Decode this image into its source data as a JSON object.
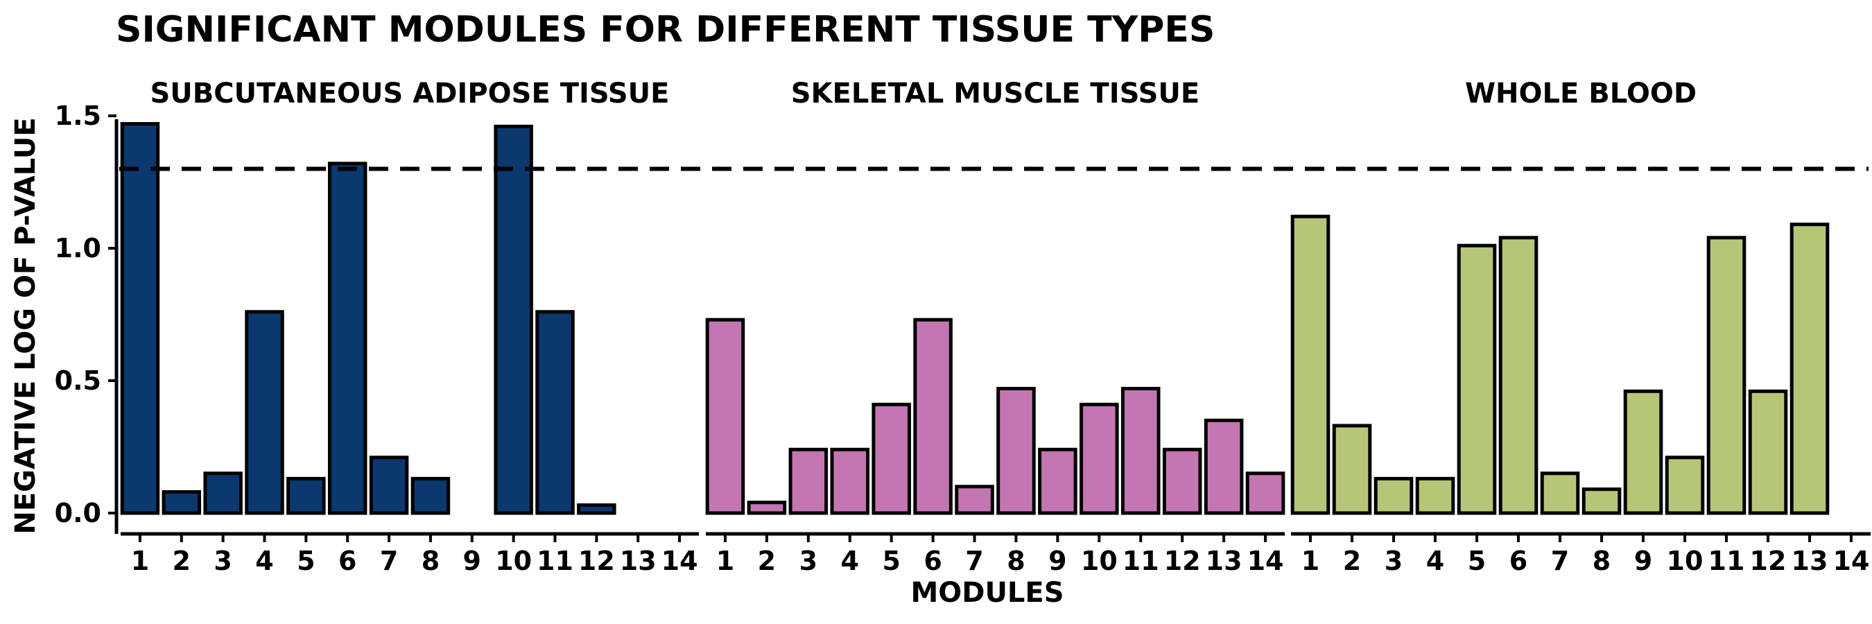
{
  "chart_data": {
    "type": "bar",
    "title": "SIGNIFICANT MODULES FOR DIFFERENT TISSUE TYPES",
    "xlabel": "MODULES",
    "ylabel": "NEGATIVE LOG OF P-VALUE",
    "ylim": [
      0,
      1.55
    ],
    "yticks": [
      "0.0",
      "0.5",
      "1.0",
      "1.5"
    ],
    "ytick_values": [
      0,
      0.5,
      1.0,
      1.5
    ],
    "categories": [
      "1",
      "2",
      "3",
      "4",
      "5",
      "6",
      "7",
      "8",
      "9",
      "10",
      "11",
      "12",
      "13",
      "14"
    ],
    "threshold": 1.3,
    "grid": false,
    "panels": [
      {
        "name": "SUBCUTANEOUS ADIPOSE TISSUE",
        "color": "#0a386f",
        "values": [
          1.47,
          0.08,
          0.15,
          0.76,
          0.13,
          1.32,
          0.21,
          0.13,
          0.0,
          1.46,
          0.76,
          0.03,
          0.0,
          0.0
        ]
      },
      {
        "name": "SKELETAL MUSCLE TISSUE",
        "color": "#c476b3",
        "values": [
          0.73,
          0.04,
          0.24,
          0.24,
          0.41,
          0.73,
          0.1,
          0.47,
          0.24,
          0.41,
          0.47,
          0.24,
          0.35,
          0.15
        ]
      },
      {
        "name": "WHOLE BLOOD",
        "color": "#b5c677",
        "values": [
          1.12,
          0.33,
          0.13,
          0.13,
          1.01,
          1.04,
          0.15,
          0.09,
          0.46,
          0.21,
          1.04,
          0.46,
          1.09,
          0.0
        ]
      }
    ]
  }
}
